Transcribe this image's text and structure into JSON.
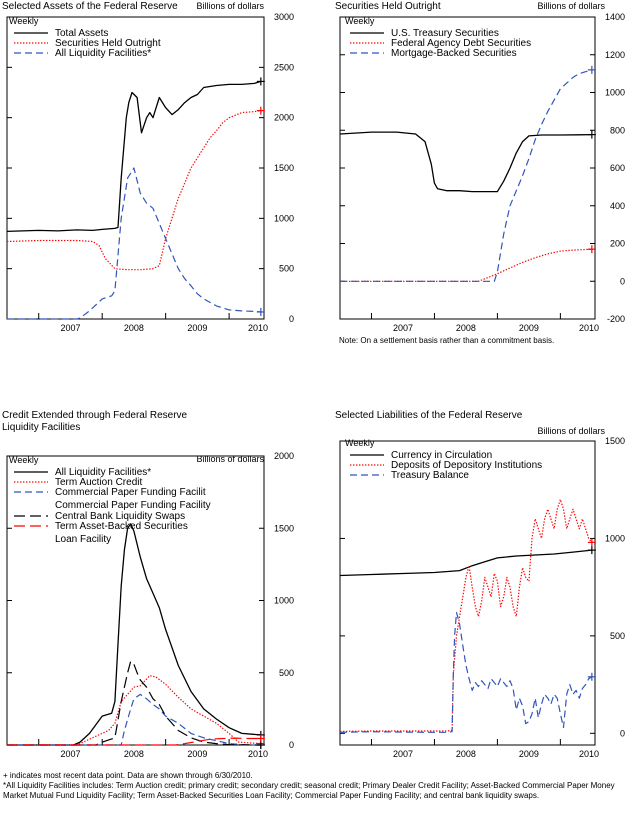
{
  "chart_data": [
    {
      "type": "line",
      "title": "Selected Assets of the Federal Reserve",
      "frequency": "Weekly",
      "units": "Billions of dollars",
      "x_ticks": [
        "2007",
        "2008",
        "2009",
        "2010"
      ],
      "x_range": [
        2006.5,
        2010.55
      ],
      "ylim": [
        0,
        3000
      ],
      "y_ticks": [
        0,
        500,
        1000,
        1500,
        2000,
        2500,
        3000
      ],
      "y_axis": "right",
      "series": [
        {
          "name": "Total Assets",
          "color": "#000000",
          "style": "solid",
          "x": [
            2006.5,
            2007.0,
            2007.3,
            2007.6,
            2007.85,
            2008.0,
            2008.2,
            2008.25,
            2008.3,
            2008.38,
            2008.42,
            2008.47,
            2008.55,
            2008.62,
            2008.7,
            2008.75,
            2008.8,
            2008.9,
            2009.0,
            2009.1,
            2009.2,
            2009.3,
            2009.4,
            2009.5,
            2009.6,
            2009.8,
            2010.0,
            2010.2,
            2010.4,
            2010.5
          ],
          "y": [
            870,
            880,
            875,
            885,
            880,
            890,
            900,
            910,
            1400,
            2000,
            2150,
            2250,
            2200,
            1850,
            2000,
            2050,
            2000,
            2200,
            2100,
            2030,
            2080,
            2150,
            2200,
            2230,
            2300,
            2320,
            2330,
            2330,
            2340,
            2360
          ]
        },
        {
          "name": "Securities Held Outright",
          "color": "#ff0000",
          "style": "dotted",
          "x": [
            2006.5,
            2007.0,
            2007.3,
            2007.6,
            2007.85,
            2007.95,
            2008.05,
            2008.2,
            2008.4,
            2008.6,
            2008.8,
            2008.9,
            2009.0,
            2009.1,
            2009.2,
            2009.3,
            2009.4,
            2009.5,
            2009.6,
            2009.7,
            2009.8,
            2009.9,
            2010.0,
            2010.2,
            2010.4,
            2010.5
          ],
          "y": [
            770,
            780,
            780,
            780,
            770,
            730,
            600,
            500,
            490,
            490,
            500,
            530,
            800,
            1000,
            1200,
            1350,
            1500,
            1600,
            1700,
            1800,
            1870,
            1950,
            2000,
            2050,
            2060,
            2070
          ]
        },
        {
          "name": "All Liquidity Facilities*",
          "color": "#3355bb",
          "style": "dashed",
          "x": [
            2006.5,
            2007.0,
            2007.3,
            2007.6,
            2007.65,
            2007.8,
            2008.0,
            2008.15,
            2008.2,
            2008.3,
            2008.4,
            2008.5,
            2008.6,
            2008.7,
            2008.8,
            2009.0,
            2009.2,
            2009.3,
            2009.4,
            2009.5,
            2009.6,
            2009.8,
            2010.0,
            2010.2,
            2010.4,
            2010.5
          ],
          "y": [
            0,
            0,
            0,
            0,
            10,
            80,
            200,
            230,
            280,
            1000,
            1400,
            1500,
            1250,
            1150,
            1100,
            800,
            500,
            400,
            330,
            250,
            200,
            130,
            90,
            80,
            75,
            70
          ]
        }
      ]
    },
    {
      "type": "line",
      "title": "Securities Held Outright",
      "frequency": "Weekly",
      "units": "Billions of dollars",
      "note": "Note: On a settlement basis rather than a commitment basis.",
      "x_ticks": [
        "2007",
        "2008",
        "2009",
        "2010"
      ],
      "x_range": [
        2006.5,
        2010.55
      ],
      "ylim": [
        -200,
        1400
      ],
      "y_ticks": [
        -200,
        0,
        200,
        400,
        600,
        800,
        1000,
        1200,
        1400
      ],
      "y_axis": "right",
      "series": [
        {
          "name": "U.S. Treasury Securities",
          "color": "#000000",
          "style": "solid",
          "x": [
            2006.5,
            2007.0,
            2007.4,
            2007.7,
            2007.85,
            2007.95,
            2008.0,
            2008.05,
            2008.2,
            2008.4,
            2008.6,
            2008.8,
            2008.9,
            2009.0,
            2009.1,
            2009.2,
            2009.3,
            2009.4,
            2009.5,
            2009.7,
            2010.0,
            2010.3,
            2010.5
          ],
          "y": [
            780,
            790,
            790,
            780,
            740,
            620,
            520,
            490,
            480,
            480,
            475,
            475,
            475,
            475,
            530,
            600,
            680,
            740,
            770,
            775,
            775,
            776,
            777
          ]
        },
        {
          "name": "Federal Agency Debt Securities",
          "color": "#ff0000",
          "style": "dotted",
          "x": [
            2006.5,
            2007.0,
            2008.0,
            2008.7,
            2008.85,
            2009.0,
            2009.2,
            2009.4,
            2009.6,
            2009.8,
            2010.0,
            2010.2,
            2010.4,
            2010.5
          ],
          "y": [
            0,
            0,
            0,
            0,
            20,
            40,
            70,
            100,
            125,
            145,
            160,
            165,
            168,
            170
          ]
        },
        {
          "name": "Mortgage-Backed Securities",
          "color": "#3355bb",
          "style": "dashed",
          "x": [
            2006.5,
            2007.0,
            2008.0,
            2008.95,
            2009.0,
            2009.1,
            2009.2,
            2009.3,
            2009.4,
            2009.5,
            2009.6,
            2009.7,
            2009.8,
            2009.9,
            2010.0,
            2010.1,
            2010.2,
            2010.3,
            2010.4,
            2010.5
          ],
          "y": [
            0,
            0,
            0,
            0,
            50,
            250,
            400,
            480,
            560,
            650,
            750,
            830,
            900,
            960,
            1020,
            1050,
            1080,
            1100,
            1110,
            1120
          ]
        }
      ]
    },
    {
      "type": "line",
      "title": "Credit Extended through Federal Reserve Liquidity Facilities",
      "title_lines": [
        "Credit Extended through Federal Reserve",
        "Liquidity Facilities"
      ],
      "frequency": "Weekly",
      "units": "Billions of dollars",
      "x_ticks": [
        "2007",
        "2008",
        "2009",
        "2010"
      ],
      "x_range": [
        2006.5,
        2010.55
      ],
      "ylim": [
        0,
        2000
      ],
      "y_ticks": [
        0,
        500,
        1000,
        1500,
        2000
      ],
      "y_axis": "right",
      "series": [
        {
          "name": "All Liquidity Facilities*",
          "color": "#000000",
          "style": "solid",
          "x": [
            2006.5,
            2007.0,
            2007.55,
            2007.65,
            2007.8,
            2008.0,
            2008.15,
            2008.2,
            2008.25,
            2008.3,
            2008.35,
            2008.4,
            2008.45,
            2008.5,
            2008.6,
            2008.7,
            2008.8,
            2008.9,
            2009.0,
            2009.2,
            2009.4,
            2009.6,
            2009.8,
            2010.0,
            2010.2,
            2010.5
          ],
          "y": [
            0,
            0,
            0,
            20,
            80,
            200,
            220,
            300,
            700,
            1100,
            1350,
            1500,
            1530,
            1480,
            1300,
            1150,
            1050,
            950,
            800,
            550,
            370,
            250,
            180,
            120,
            80,
            70
          ]
        },
        {
          "name": "Term Auction Credit",
          "color": "#ff0000",
          "style": "dotted",
          "x": [
            2006.5,
            2007.0,
            2007.6,
            2007.7,
            2007.9,
            2008.1,
            2008.2,
            2008.3,
            2008.5,
            2008.6,
            2008.75,
            2008.85,
            2009.0,
            2009.2,
            2009.4,
            2009.6,
            2009.8,
            2010.0,
            2010.15,
            2010.5
          ],
          "y": [
            0,
            0,
            0,
            20,
            60,
            100,
            150,
            300,
            400,
            410,
            480,
            470,
            420,
            330,
            250,
            200,
            150,
            80,
            20,
            10
          ]
        },
        {
          "name": "Commercial Paper Funding Facility",
          "color": "#3355bb",
          "style": "dashed",
          "x": [
            2006.5,
            2008.3,
            2008.35,
            2008.45,
            2008.5,
            2008.6,
            2008.7,
            2008.8,
            2008.9,
            2009.0,
            2009.2,
            2009.4,
            2009.6,
            2009.8,
            2010.0,
            2010.3,
            2010.5
          ],
          "y": [
            0,
            0,
            100,
            250,
            320,
            350,
            320,
            280,
            250,
            200,
            150,
            80,
            50,
            30,
            10,
            0,
            0
          ]
        },
        {
          "name": "Central Bank Liquidity Swaps",
          "color": "#000000",
          "style": "longdash",
          "x": [
            2006.5,
            2007.9,
            2008.0,
            2008.2,
            2008.3,
            2008.4,
            2008.45,
            2008.5,
            2008.55,
            2008.6,
            2008.7,
            2008.8,
            2008.9,
            2009.0,
            2009.2,
            2009.4,
            2009.6,
            2009.8,
            2010.0,
            2010.5
          ],
          "y": [
            0,
            0,
            20,
            50,
            300,
            500,
            580,
            560,
            500,
            450,
            400,
            320,
            280,
            200,
            100,
            50,
            20,
            10,
            2,
            0
          ]
        },
        {
          "name": "Term Asset-Backed Securities Loan Facility",
          "color": "#ff0000",
          "style": "longdash",
          "x": [
            2006.5,
            2009.15,
            2009.3,
            2009.5,
            2009.7,
            2009.9,
            2010.1,
            2010.3,
            2010.5
          ],
          "y": [
            0,
            0,
            10,
            25,
            40,
            45,
            48,
            45,
            45
          ]
        }
      ]
    },
    {
      "type": "line",
      "title": "Selected Liabilities of the Federal Reserve",
      "frequency": "Weekly",
      "units": "Billions of dollars",
      "x_ticks": [
        "2007",
        "2008",
        "2009",
        "2010"
      ],
      "x_range": [
        2006.5,
        2010.55
      ],
      "ylim": [
        -60,
        1500
      ],
      "y_ticks": [
        0,
        500,
        1000,
        1500
      ],
      "y_axis": "right",
      "series": [
        {
          "name": "Currency in Circulation",
          "color": "#000000",
          "style": "solid",
          "x": [
            2006.5,
            2007.0,
            2007.5,
            2008.0,
            2008.4,
            2008.6,
            2008.8,
            2009.0,
            2009.3,
            2009.6,
            2009.9,
            2010.2,
            2010.5
          ],
          "y": [
            810,
            815,
            820,
            825,
            835,
            860,
            880,
            900,
            910,
            915,
            920,
            930,
            940
          ]
        },
        {
          "name": "Deposits of Depository Institutions",
          "color": "#ff0000",
          "style": "dotted",
          "x": [
            2006.5,
            2007.0,
            2007.5,
            2008.0,
            2008.2,
            2008.28,
            2008.3,
            2008.35,
            2008.4,
            2008.45,
            2008.5,
            2008.55,
            2008.6,
            2008.65,
            2008.7,
            2008.75,
            2008.8,
            2008.85,
            2008.9,
            2008.95,
            2009.0,
            2009.05,
            2009.1,
            2009.15,
            2009.2,
            2009.25,
            2009.3,
            2009.35,
            2009.4,
            2009.45,
            2009.5,
            2009.55,
            2009.6,
            2009.65,
            2009.7,
            2009.75,
            2009.8,
            2009.85,
            2009.9,
            2009.95,
            2010.0,
            2010.05,
            2010.1,
            2010.15,
            2010.2,
            2010.25,
            2010.3,
            2010.35,
            2010.4,
            2010.45,
            2010.5
          ],
          "y": [
            10,
            12,
            12,
            12,
            12,
            15,
            300,
            500,
            600,
            700,
            800,
            860,
            750,
            650,
            600,
            680,
            800,
            750,
            700,
            820,
            780,
            650,
            700,
            800,
            750,
            650,
            600,
            750,
            850,
            800,
            780,
            1000,
            1100,
            1050,
            1000,
            1100,
            1150,
            1100,
            1050,
            1150,
            1200,
            1150,
            1050,
            1100,
            1150,
            1100,
            1050,
            1100,
            1050,
            1000,
            980
          ]
        },
        {
          "name": "Treasury Balance",
          "color": "#3355bb",
          "style": "dashed",
          "x": [
            2006.5,
            2007.0,
            2007.5,
            2008.0,
            2008.2,
            2008.28,
            2008.3,
            2008.32,
            2008.35,
            2008.4,
            2008.45,
            2008.5,
            2008.55,
            2008.6,
            2008.65,
            2008.7,
            2008.75,
            2008.8,
            2008.85,
            2008.9,
            2008.95,
            2009.0,
            2009.05,
            2009.1,
            2009.15,
            2009.2,
            2009.25,
            2009.3,
            2009.35,
            2009.4,
            2009.45,
            2009.5,
            2009.55,
            2009.6,
            2009.65,
            2009.7,
            2009.75,
            2009.8,
            2009.85,
            2009.9,
            2009.95,
            2010.0,
            2010.05,
            2010.1,
            2010.15,
            2010.2,
            2010.25,
            2010.3,
            2010.35,
            2010.4,
            2010.45,
            2010.5
          ],
          "y": [
            5,
            8,
            6,
            5,
            5,
            8,
            300,
            500,
            620,
            560,
            450,
            350,
            280,
            220,
            260,
            240,
            270,
            250,
            230,
            280,
            260,
            240,
            280,
            260,
            240,
            270,
            230,
            120,
            180,
            140,
            50,
            60,
            100,
            180,
            80,
            150,
            200,
            180,
            150,
            200,
            180,
            100,
            30,
            200,
            250,
            200,
            220,
            180,
            230,
            250,
            280,
            290
          ]
        }
      ]
    }
  ],
  "footnotes": [
    "+ indicates most recent data point. Data are shown through 6/30/2010.",
    "*All Liquidity Facilities includes: Term Auction credit; primary credit; secondary credit; seasonal credit; Primary Dealer Credit Facility; Asset-Backed Commercial Paper Money Market Mutual Fund Liquidity Facility; Term Asset-Backed Securities Loan Facility; Commercial Paper Funding Facility; and central bank liquidity swaps."
  ]
}
